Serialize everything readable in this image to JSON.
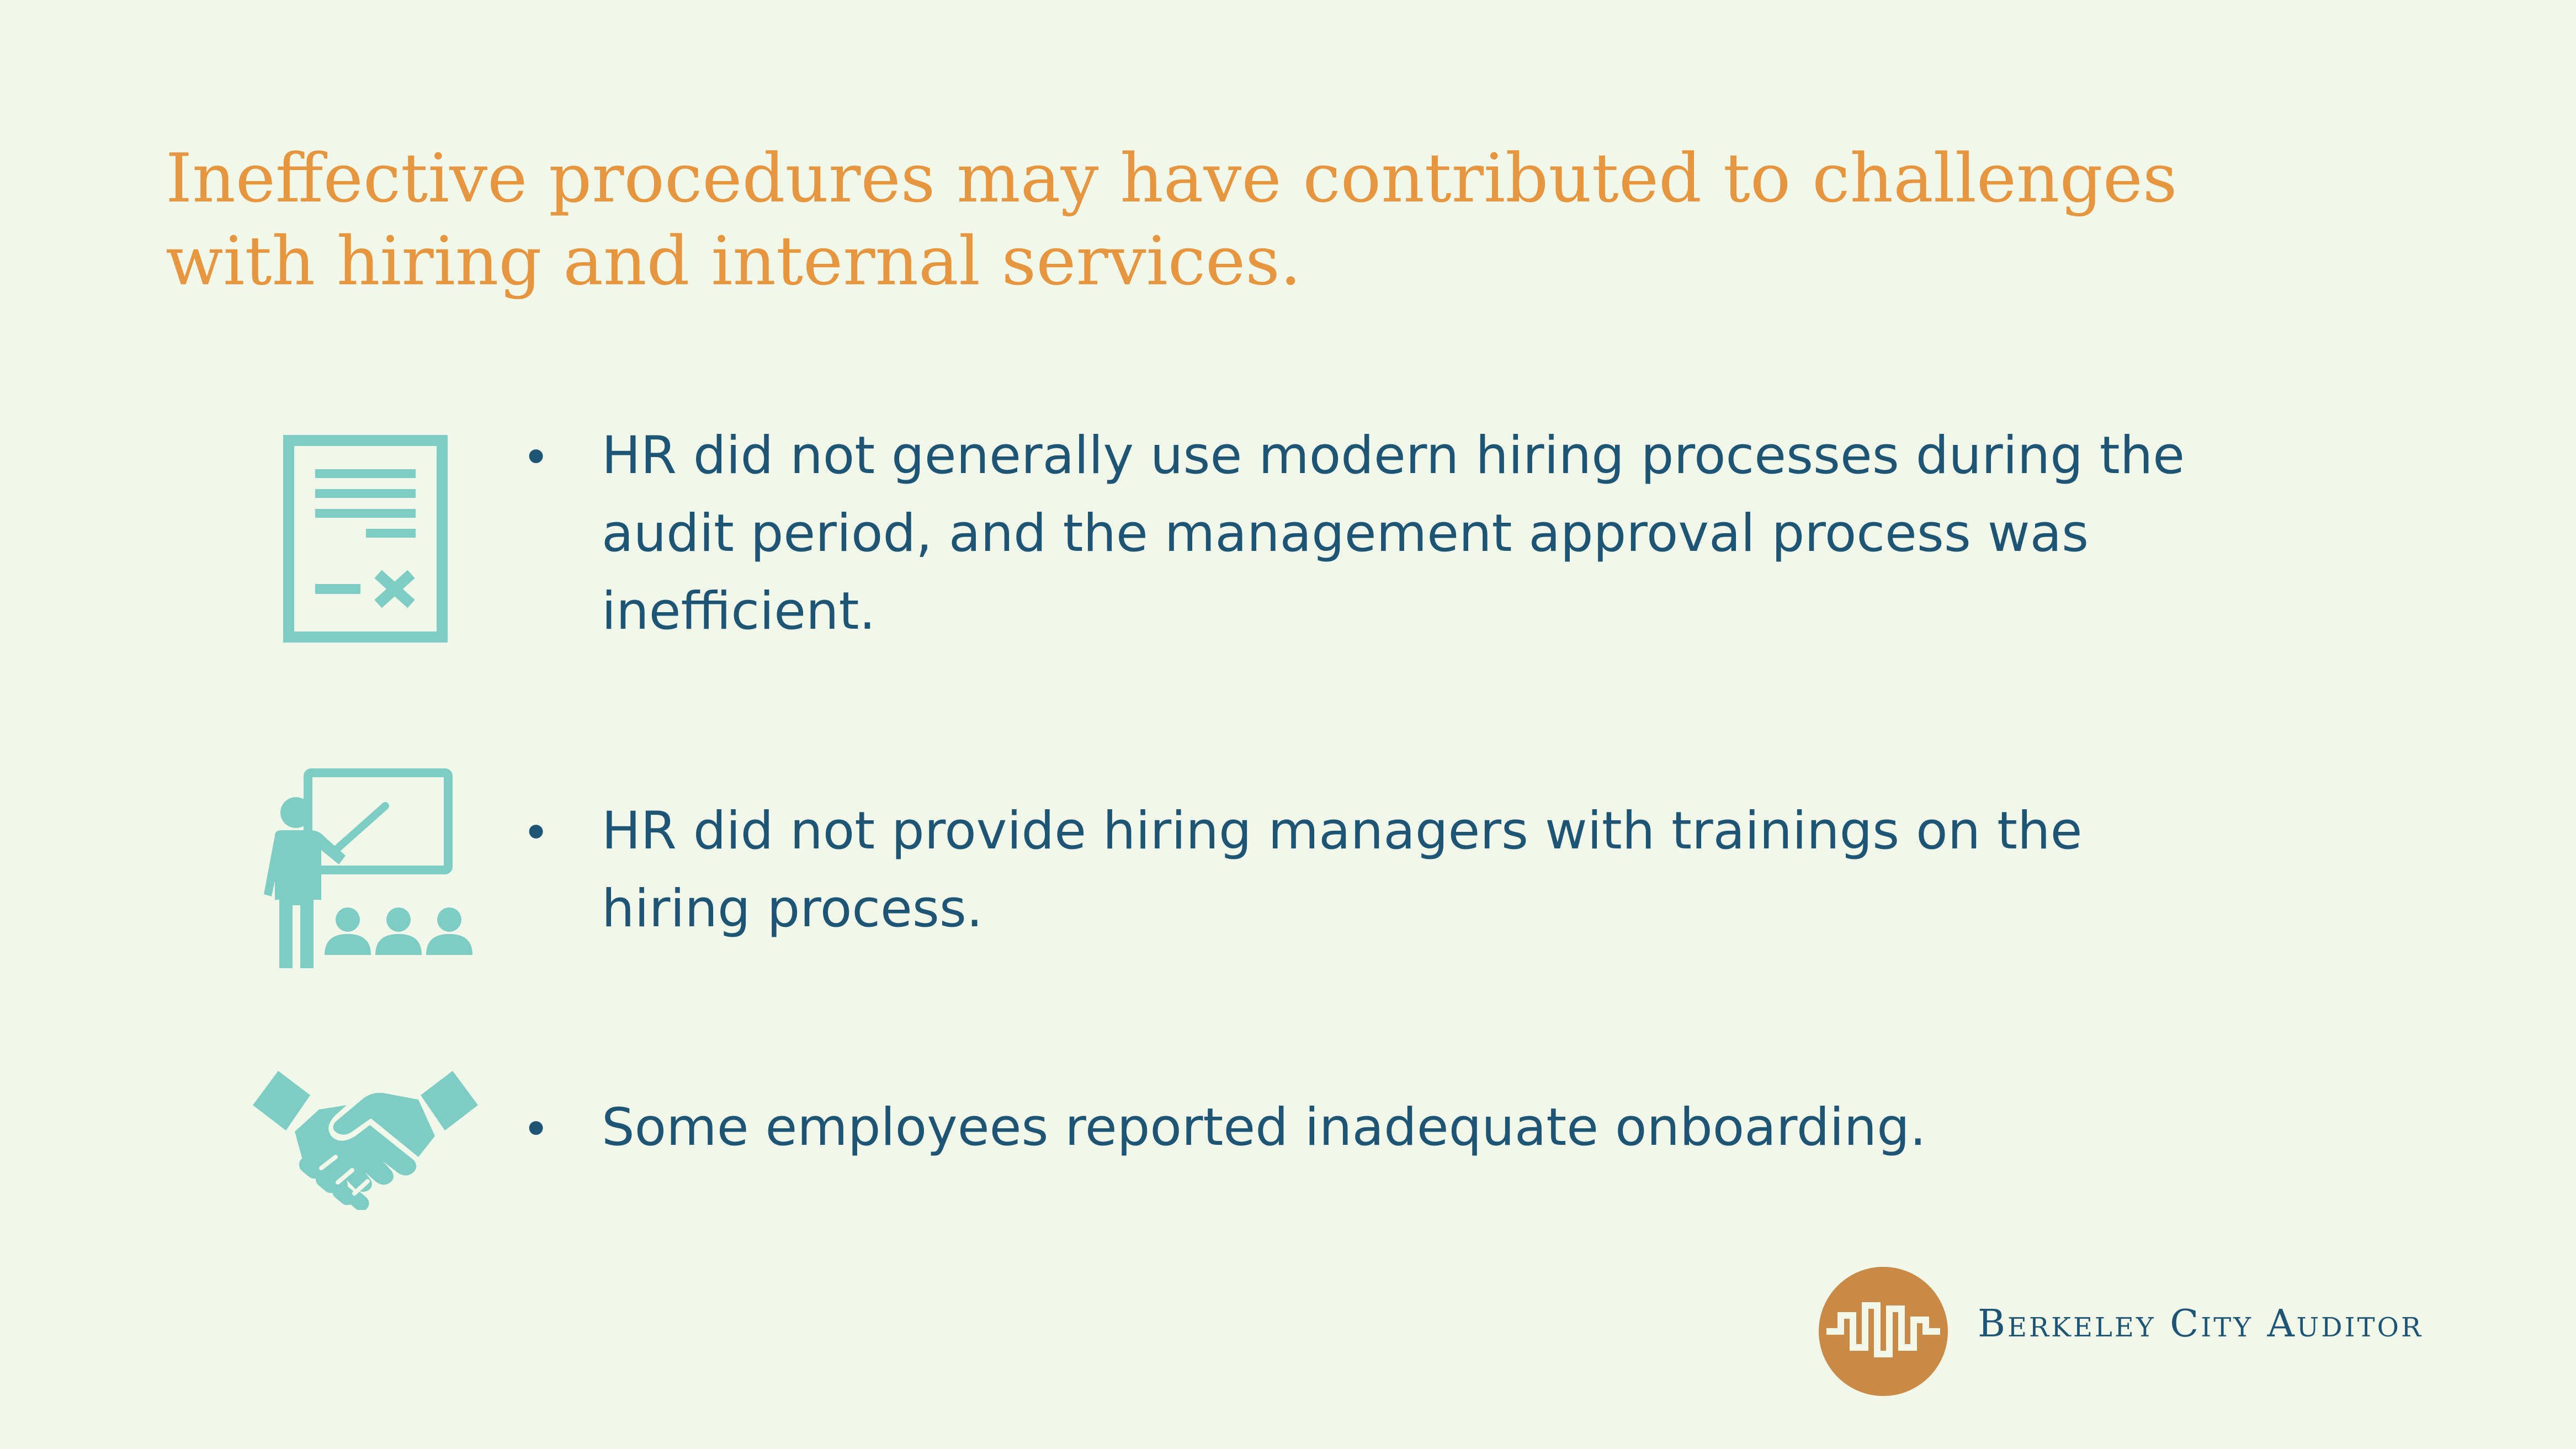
{
  "slide": {
    "title_lines": [
      "Ineffective procedures may have contributed to challenges",
      "with hiring and internal services."
    ],
    "bullets": [
      {
        "icon": "document-icon",
        "lines": [
          "HR did not generally use modern hiring processes during the",
          "audit period, and the management approval process was",
          "inefficient."
        ]
      },
      {
        "icon": "training-presenter-icon",
        "lines": [
          "HR did not provide hiring managers with trainings on the",
          "hiring process."
        ]
      },
      {
        "icon": "handshake-icon",
        "lines": [
          "Some employees reported inadequate onboarding."
        ]
      }
    ],
    "bullet_glyph": "•",
    "logo": {
      "text": "Berkeley City Auditor",
      "icon": "berkeley-auditor-logo-icon"
    }
  },
  "colors": {
    "background": "#f1f8ea",
    "title": "#e6963f",
    "body_text": "#1f5574",
    "icon": "#7ecdc4",
    "logo": "#c98a45"
  }
}
